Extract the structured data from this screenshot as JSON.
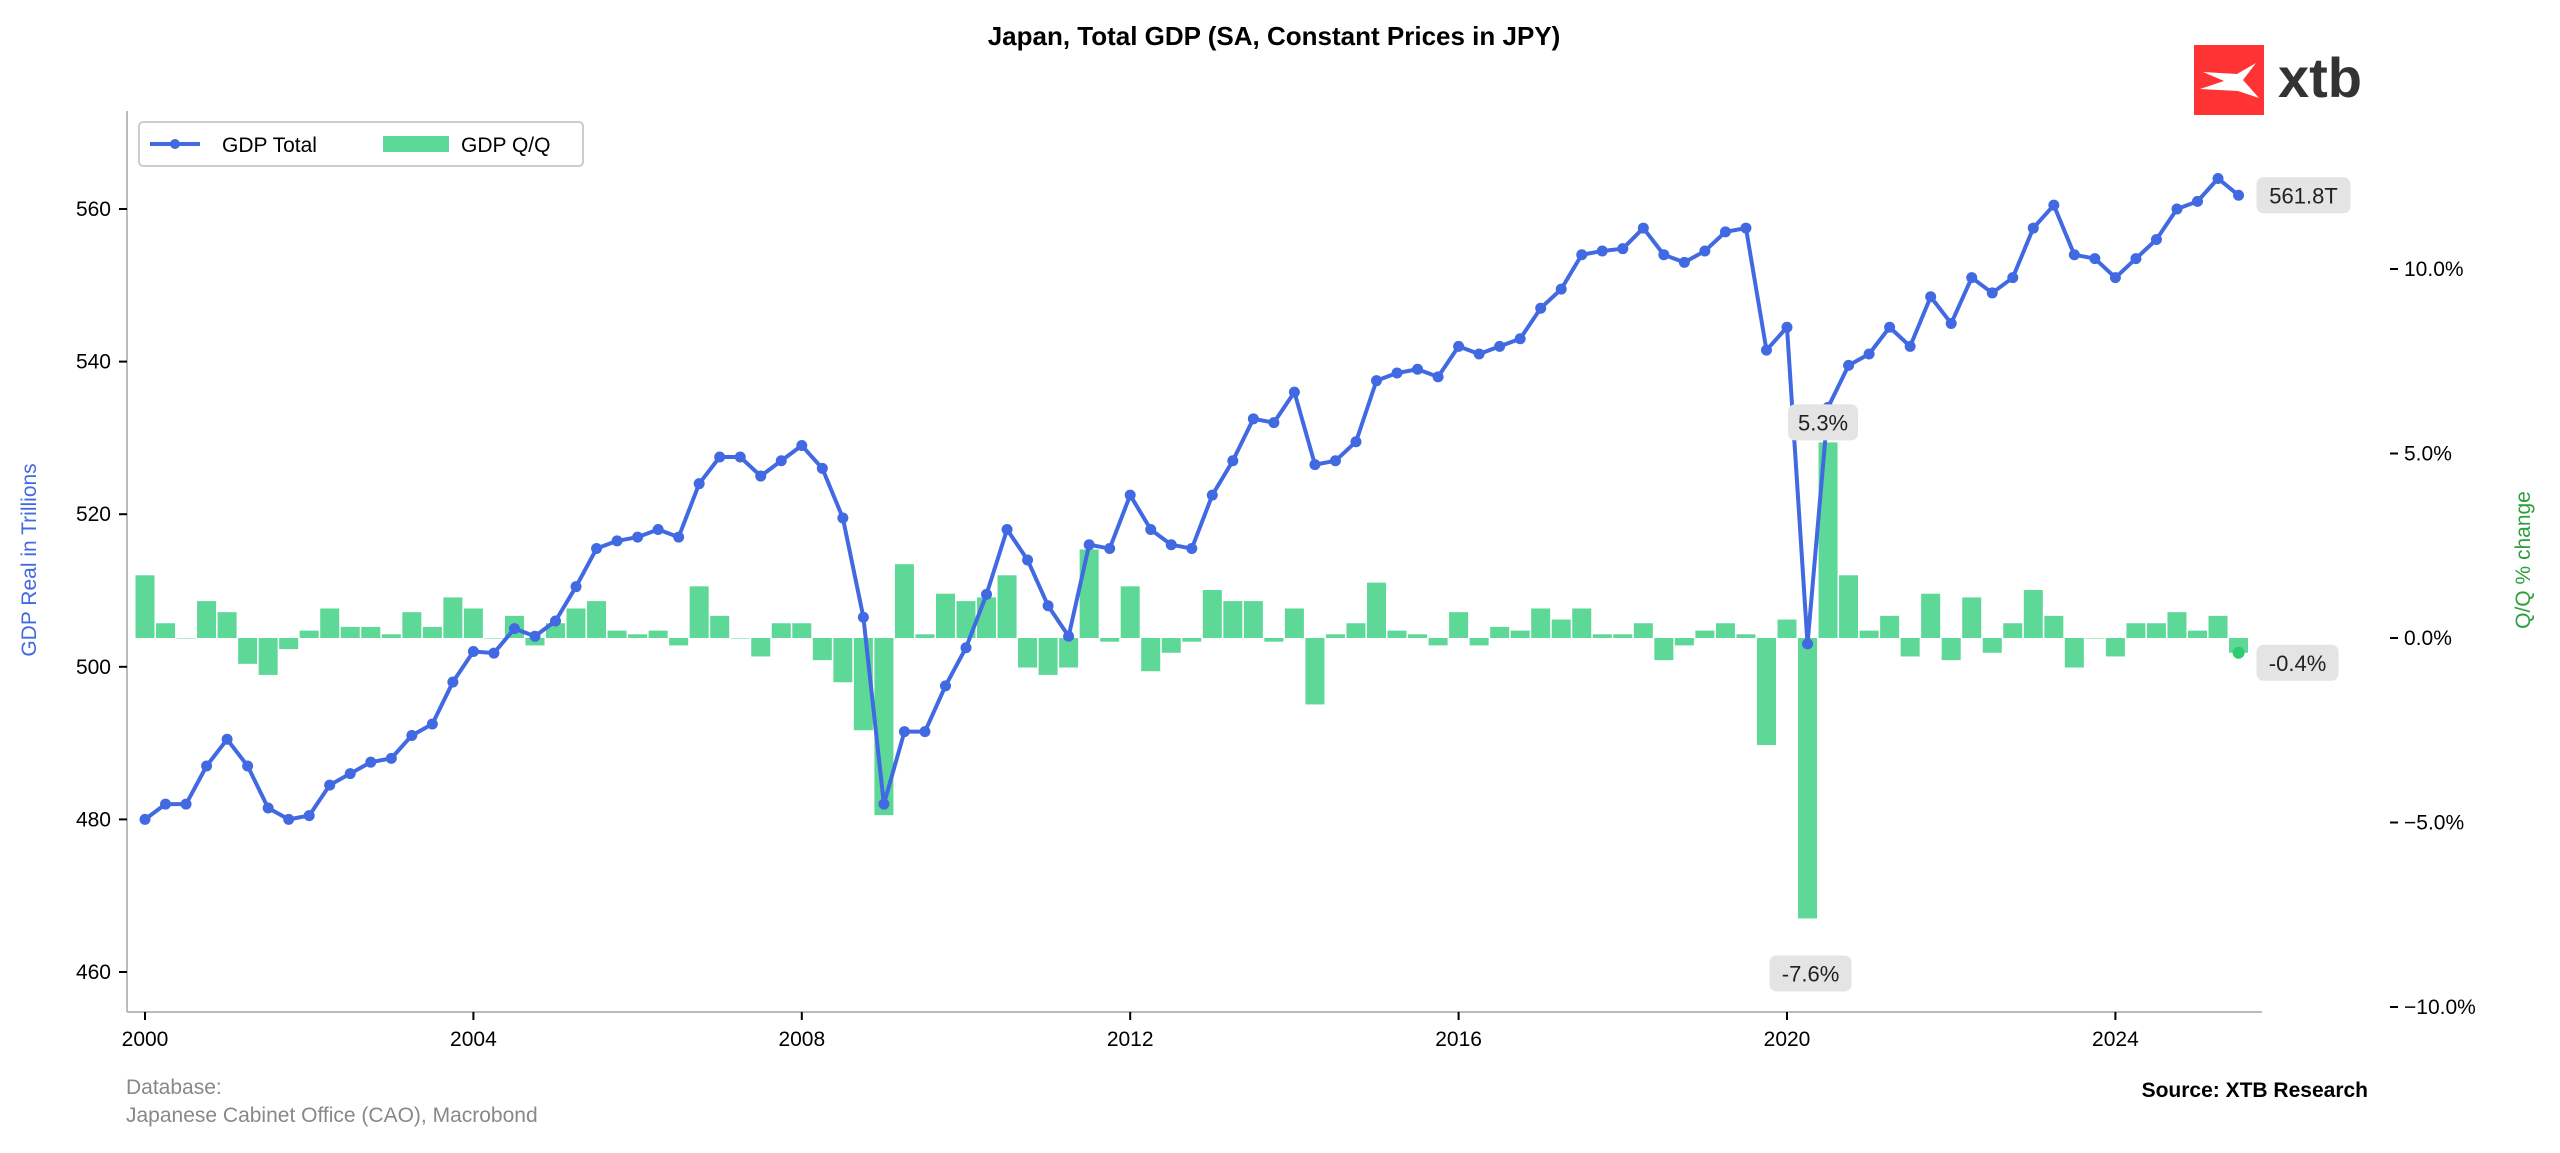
{
  "chart_data": {
    "type": "line+bar",
    "title": "Japan, Total GDP (SA, Constant Prices in JPY)",
    "ylabel_left": "GDP Real in Trillions",
    "ylabel_right": "Q/Q % change",
    "ylim_left": [
      455,
      573
    ],
    "ylim_right": [
      -10.5,
      13.3
    ],
    "xlim": [
      1999.9,
      2025.75
    ],
    "x_ticks": [
      "2000",
      "2004",
      "2008",
      "2012",
      "2016",
      "2020",
      "2024"
    ],
    "y_left_ticks": [
      "460",
      "480",
      "500",
      "520",
      "540",
      "560"
    ],
    "y_right_ticks": [
      "10.0%",
      "5.0%",
      "0.0%",
      "−5.0%",
      "−10.0%"
    ],
    "y_right_tick_values": [
      10,
      5,
      0,
      -5,
      -10
    ],
    "grid": false,
    "legend_placement": "top-left",
    "start": "2000-Q1",
    "frequency": "quarterly",
    "series": [
      {
        "name": "GDP Total",
        "axis": "left",
        "color": "#4169E1",
        "values": [
          480,
          482,
          482,
          487,
          490.5,
          487,
          481.5,
          480,
          480.5,
          484.5,
          486,
          487.5,
          488,
          491,
          492.5,
          498,
          502,
          501.8,
          505,
          504,
          506,
          510.5,
          515.5,
          516.5,
          517,
          518,
          517,
          524,
          527.5,
          527.5,
          525,
          527,
          529,
          526,
          519.5,
          506.5,
          482,
          491.5,
          491.5,
          497.5,
          502.5,
          509.5,
          518,
          514,
          508,
          504,
          516,
          515.5,
          522.5,
          518,
          516,
          515.5,
          522.5,
          527,
          532.5,
          532,
          536,
          526.5,
          527,
          529.5,
          537.5,
          538.5,
          539,
          538,
          542,
          541,
          542,
          543,
          547,
          549.5,
          554,
          554.5,
          554.8,
          557.5,
          554,
          553,
          554.5,
          557,
          557.5,
          541.5,
          544.5,
          503,
          534,
          539.5,
          541,
          544.5,
          542,
          548.5,
          545,
          551,
          549,
          551,
          557.5,
          560.5,
          554,
          553.5,
          551,
          553.5,
          556,
          560,
          561,
          564,
          561.8
        ]
      },
      {
        "name": "GDP Q/Q",
        "axis": "right",
        "color": "#5DD896",
        "values": [
          1.7,
          0.4,
          0.0,
          1.0,
          0.7,
          -0.7,
          -1.0,
          -0.3,
          0.2,
          0.8,
          0.3,
          0.3,
          0.1,
          0.7,
          0.3,
          1.1,
          0.8,
          0.0,
          0.6,
          -0.2,
          0.4,
          0.8,
          1.0,
          0.2,
          0.1,
          0.2,
          -0.2,
          1.4,
          0.6,
          0.0,
          -0.5,
          0.4,
          0.4,
          -0.6,
          -1.2,
          -2.5,
          -4.8,
          2.0,
          0.1,
          1.2,
          1.0,
          1.1,
          1.7,
          -0.8,
          -1.0,
          -0.8,
          2.4,
          -0.1,
          1.4,
          -0.9,
          -0.4,
          -0.1,
          1.3,
          1.0,
          1.0,
          -0.1,
          0.8,
          -1.8,
          0.1,
          0.4,
          1.5,
          0.2,
          0.1,
          -0.2,
          0.7,
          -0.2,
          0.3,
          0.2,
          0.8,
          0.5,
          0.8,
          0.1,
          0.1,
          0.4,
          -0.6,
          -0.2,
          0.2,
          0.4,
          0.1,
          -2.9,
          0.5,
          -7.6,
          5.3,
          1.7,
          0.2,
          0.6,
          -0.5,
          1.2,
          -0.6,
          1.1,
          -0.4,
          0.4,
          1.3,
          0.6,
          -0.8,
          0.0,
          -0.5,
          0.4,
          0.4,
          0.7,
          0.2,
          0.6,
          -0.4
        ]
      }
    ],
    "annotations": [
      {
        "text": "561.8T",
        "series": "GDP Total",
        "period": "2025-Q3"
      },
      {
        "text": "-0.4%",
        "series": "GDP Q/Q",
        "period": "2025-Q3"
      },
      {
        "text": "5.3%",
        "series": "GDP Q/Q",
        "period": "2020-Q3"
      },
      {
        "text": "-7.6%",
        "series": "GDP Q/Q",
        "period": "2020-Q2"
      }
    ]
  },
  "logo": {
    "text": "xtb",
    "color": "#FF3333"
  },
  "footer": {
    "database_label": "Database:",
    "database_sources": "Japanese Cabinet Office (CAO), Macrobond",
    "source": "Source: XTB Research"
  }
}
